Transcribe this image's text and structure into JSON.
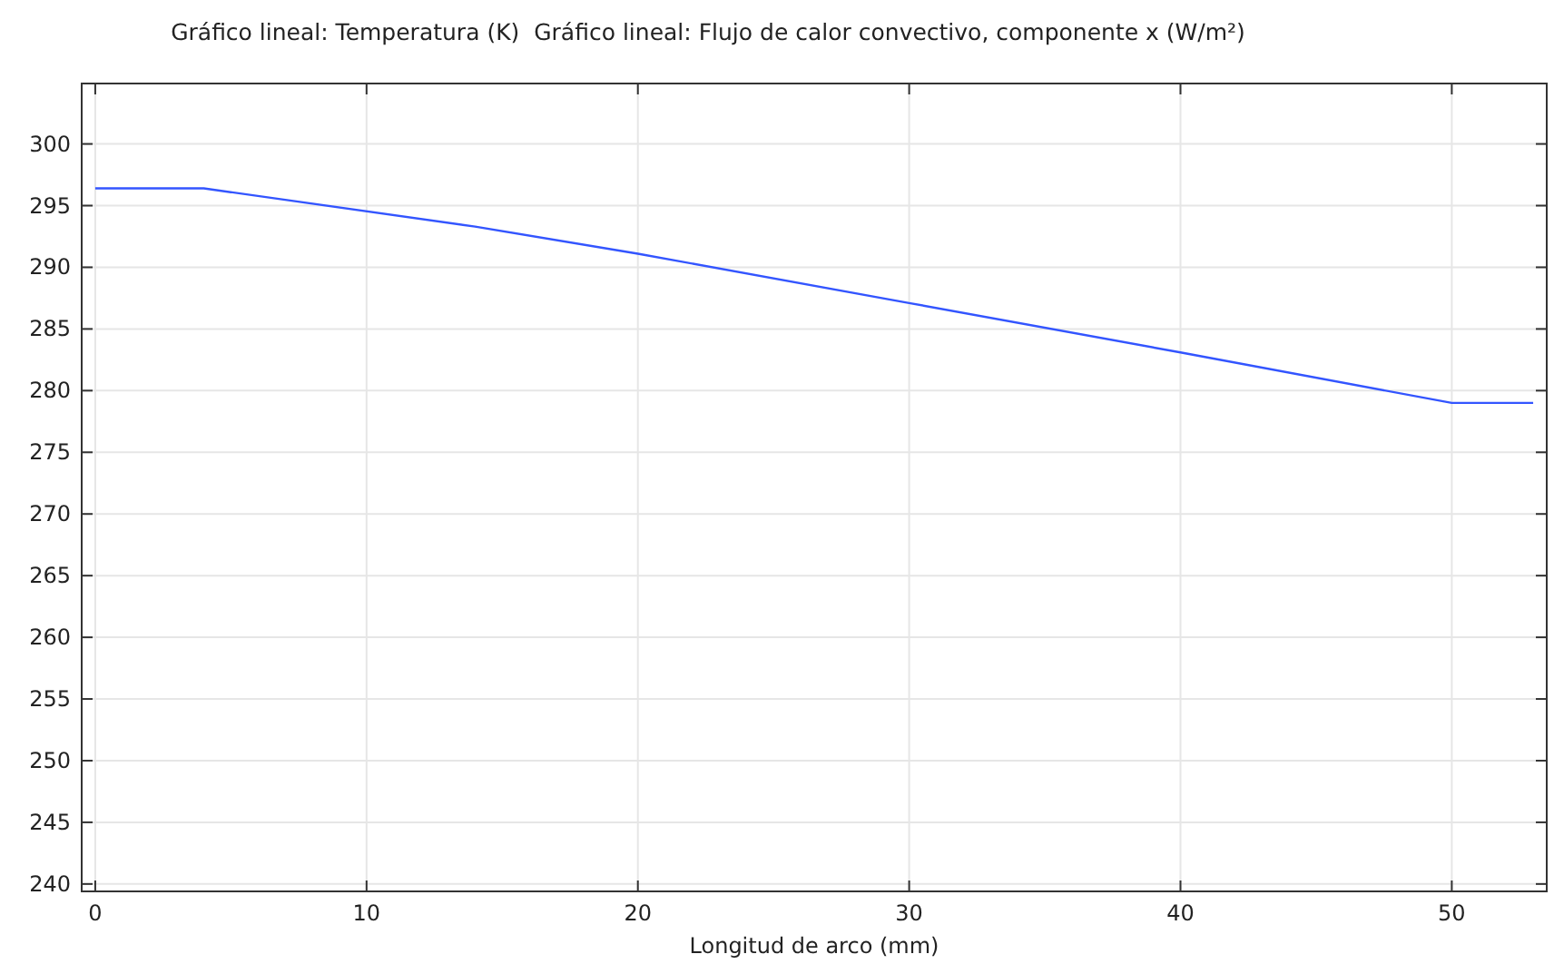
{
  "chart_data": {
    "type": "line",
    "title": "Gráfico lineal: Temperatura (K)  Gráfico lineal: Flujo de calor convectivo, componente x (W/m²)",
    "xlabel": "Longitud de arco (mm)",
    "x": [
      0,
      4,
      14,
      20,
      30,
      40,
      50,
      53
    ],
    "series": [
      {
        "color": "#3355ff",
        "values": [
          296.4,
          296.4,
          293.3,
          291.1,
          287.1,
          283.1,
          279.0,
          279.0
        ]
      }
    ],
    "xlim": [
      -0.5,
      53.5
    ],
    "ylim": [
      239.4,
      304.9
    ],
    "xticks": [
      0,
      10,
      20,
      30,
      40,
      50
    ],
    "yticks": [
      240,
      245,
      250,
      255,
      260,
      265,
      270,
      275,
      280,
      285,
      290,
      295,
      300
    ],
    "grid": true,
    "line_style": "solid",
    "marker": "none"
  }
}
